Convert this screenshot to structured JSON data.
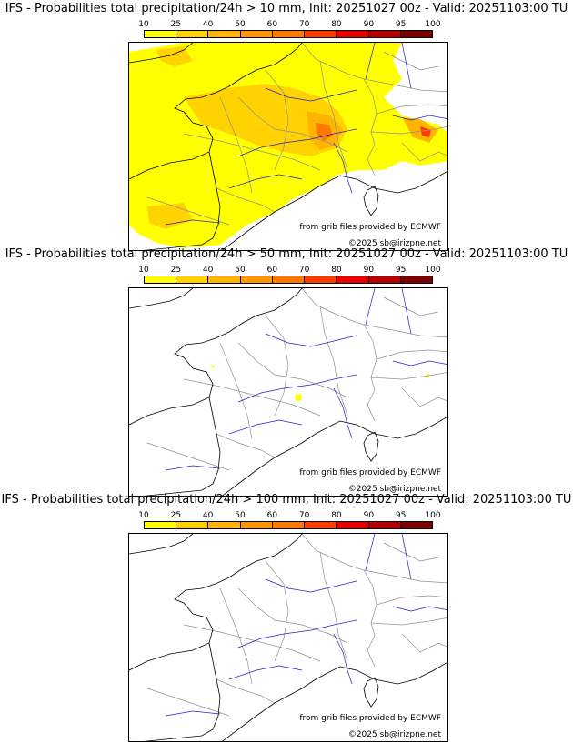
{
  "colorbar": {
    "ticks": [
      "10",
      "25",
      "40",
      "50",
      "60",
      "70",
      "80",
      "90",
      "95",
      "100"
    ],
    "colors": [
      "#ffff00",
      "#ffd200",
      "#ffb400",
      "#ff9600",
      "#ff7800",
      "#ff3c00",
      "#e60000",
      "#b40000",
      "#7d0000"
    ]
  },
  "colors": {
    "river": "#2020d0",
    "border": "#909090",
    "coast": "#000000"
  },
  "panels": [
    {
      "title": "IFS - Probabilities total precipitation/24h > 10 mm, Init: 20251027 00z - Valid: 20251103:00 TU",
      "source_note": "from grib files provided by ECMWF",
      "copyright": "©2025 sb@irizpne.net",
      "coverage": "high"
    },
    {
      "title": "IFS - Probabilities total precipitation/24h > 50 mm, Init: 20251027 00z - Valid: 20251103:00 TU",
      "source_note": "from grib files provided by ECMWF",
      "copyright": "©2025 sb@irizpne.net",
      "coverage": "low"
    },
    {
      "title": "IFS - Probabilities total precipitation/24h > 100 mm, Init: 20251027 00z - Valid: 20251103:00 TU",
      "source_note": "from grib files provided by ECMWF",
      "copyright": "©2025 sb@irizpne.net",
      "coverage": "none"
    }
  ]
}
